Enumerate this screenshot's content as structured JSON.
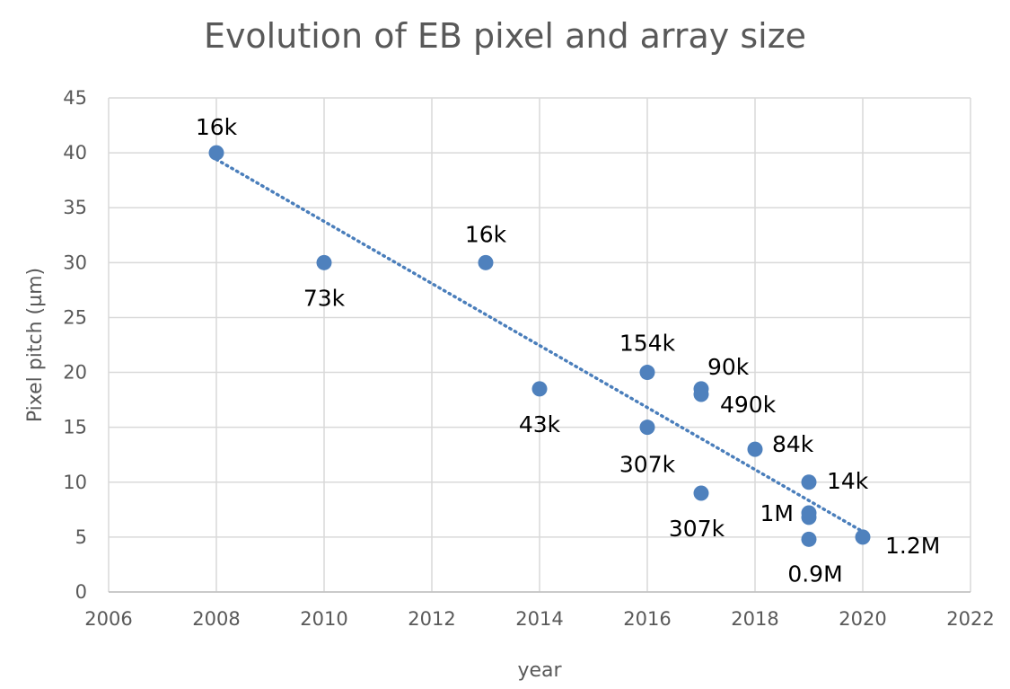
{
  "chart_data": {
    "type": "scatter",
    "title": "Evolution of EB pixel and array size",
    "xlabel": "year",
    "ylabel": "Pixel pitch (µm)",
    "xlim": [
      2006,
      2022
    ],
    "ylim": [
      0,
      45
    ],
    "x_ticks": [
      "2006",
      "2008",
      "2010",
      "2012",
      "2014",
      "2016",
      "2018",
      "2020",
      "2022"
    ],
    "y_ticks": [
      "0",
      "5",
      "10",
      "15",
      "20",
      "25",
      "30",
      "35",
      "40",
      "45"
    ],
    "grid": true,
    "legend": "none",
    "marker_color": "#4f81bd",
    "trendline": {
      "type": "linear",
      "style": "dotted",
      "color": "#4a7ebb",
      "x": [
        2008,
        2020
      ],
      "y": [
        39.4,
        5.5
      ]
    },
    "points": [
      {
        "x": 2008,
        "y": 40,
        "label": "16k"
      },
      {
        "x": 2010,
        "y": 30,
        "label": "73k"
      },
      {
        "x": 2013,
        "y": 30,
        "label": "16k"
      },
      {
        "x": 2014,
        "y": 18.5,
        "label": "43k"
      },
      {
        "x": 2016,
        "y": 20,
        "label": "154k"
      },
      {
        "x": 2016,
        "y": 15,
        "label": "307k"
      },
      {
        "x": 2017,
        "y": 18.5,
        "label": "90k"
      },
      {
        "x": 2017,
        "y": 18,
        "label": "490k"
      },
      {
        "x": 2017,
        "y": 9,
        "label": "307k"
      },
      {
        "x": 2018,
        "y": 13,
        "label": "84k"
      },
      {
        "x": 2019,
        "y": 10,
        "label": "14k"
      },
      {
        "x": 2019,
        "y": 7.2,
        "label": "1M"
      },
      {
        "x": 2019,
        "y": 6.8,
        "label": ""
      },
      {
        "x": 2019,
        "y": 4.8,
        "label": "0.9M"
      },
      {
        "x": 2020,
        "y": 5,
        "label": "1.2M"
      }
    ]
  }
}
